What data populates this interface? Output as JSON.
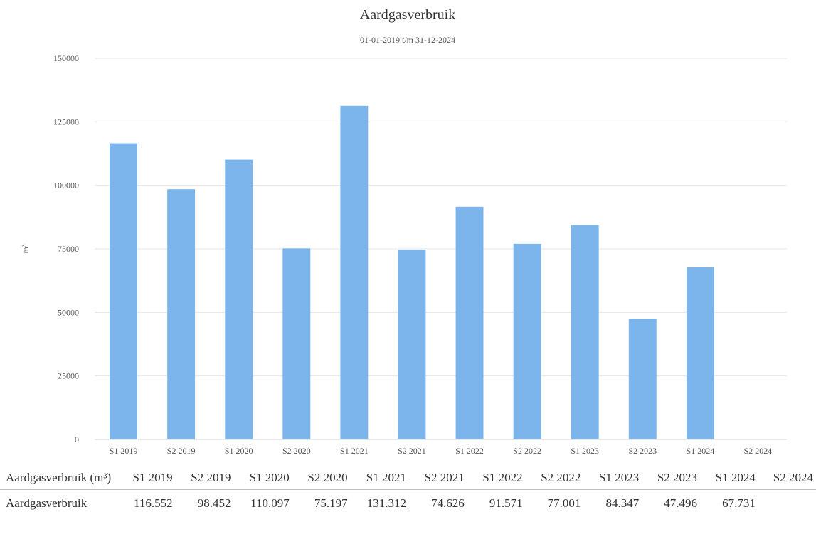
{
  "chart_data": {
    "type": "bar",
    "title": "Aardgasverbruik",
    "subtitle": "01-01-2019 t/m 31-12-2024",
    "ylabel": "m³",
    "xlabel": "",
    "ylim": [
      0,
      150000
    ],
    "yticks": [
      "0",
      "25000",
      "50000",
      "75000",
      "100000",
      "125000",
      "150000"
    ],
    "grid": true,
    "categories": [
      "S1 2019",
      "S2 2019",
      "S1 2020",
      "S2 2020",
      "S1 2021",
      "S2 2021",
      "S1 2022",
      "S2 2022",
      "S1 2023",
      "S2 2023",
      "S1 2024",
      "S2 2024"
    ],
    "series": [
      {
        "values": [
          116552,
          98452,
          110097,
          75197,
          131312,
          74626,
          91571,
          77001,
          84347,
          47496,
          67731,
          null
        ]
      }
    ],
    "bar_color": "#7cb5ec"
  },
  "table": {
    "header_label": "Aardgasverbruik (m³)",
    "columns": [
      "S1 2019",
      "S2 2019",
      "S1 2020",
      "S2 2020",
      "S1 2021",
      "S2 2021",
      "S1 2022",
      "S2 2022",
      "S1 2023",
      "S2 2023",
      "S1 2024",
      "S2 2024"
    ],
    "rows": [
      {
        "label": "Aardgasverbruik",
        "values": [
          "116.552",
          "98.452",
          "110.097",
          "75.197",
          "131.312",
          "74.626",
          "91.571",
          "77.001",
          "84.347",
          "47.496",
          "67.731",
          ""
        ]
      }
    ]
  }
}
